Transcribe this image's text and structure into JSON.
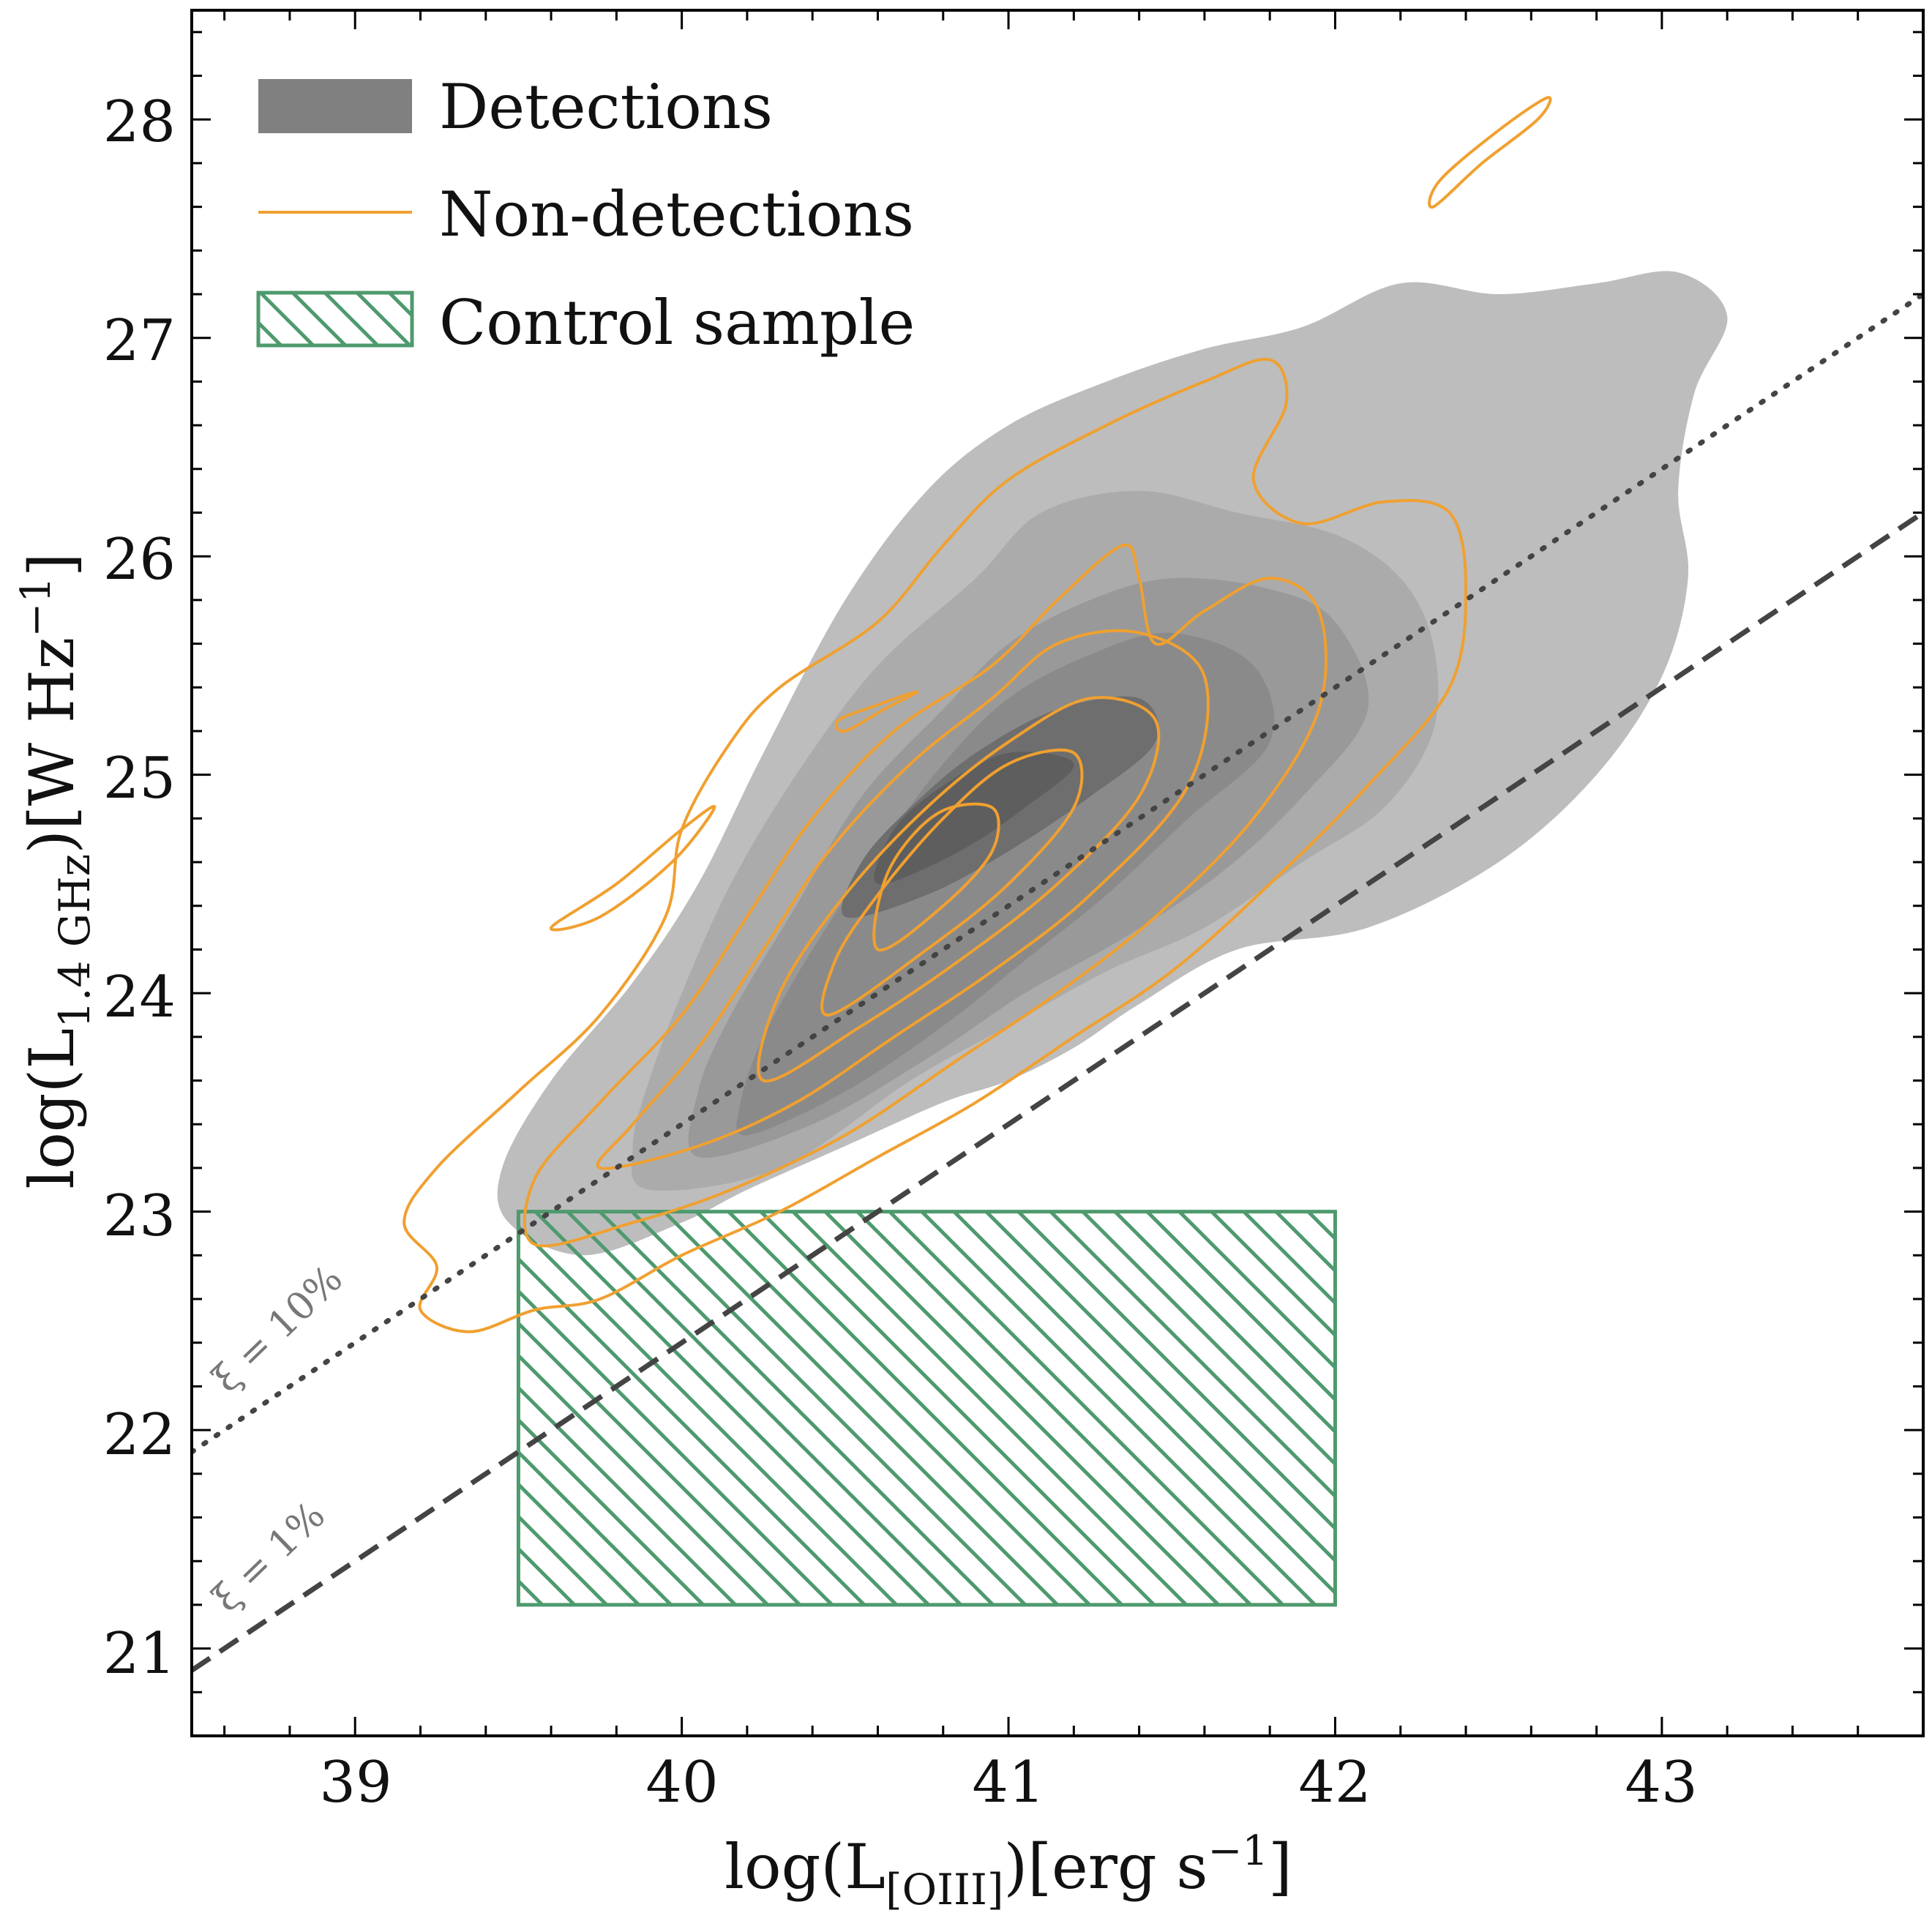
{
  "chart_data": {
    "type": "contour",
    "title": "",
    "xlabel": {
      "main": "log(L",
      "sub": "[OIII]",
      "tail": ")[erg s",
      "sup": "−1",
      "end": "]"
    },
    "ylabel": {
      "main": "log(L",
      "sub": "1.4 GHz",
      "tail": ")[W Hz",
      "sup": "−1",
      "end": "]"
    },
    "xlim": [
      38.5,
      43.8
    ],
    "ylim": [
      20.6,
      28.5
    ],
    "x_ticks": [
      39,
      40,
      41,
      42,
      43
    ],
    "y_ticks": [
      21,
      22,
      23,
      24,
      25,
      26,
      27,
      28
    ],
    "x_tick_labels": [
      "39",
      "40",
      "41",
      "42",
      "43"
    ],
    "y_tick_labels": [
      "21",
      "22",
      "23",
      "24",
      "25",
      "26",
      "27",
      "28"
    ],
    "legend": {
      "position": "top-left",
      "entries": [
        {
          "label": "Detections",
          "style": "filled",
          "color": "#808080"
        },
        {
          "label": "Non-detections",
          "style": "line",
          "color": "#f0a030"
        },
        {
          "label": "Control sample",
          "style": "hatched",
          "color": "#4e9a6e"
        }
      ]
    },
    "detections": {
      "name": "Detections",
      "levels": [
        {
          "color": "#bdbdbd",
          "points": [
            [
              39.47,
              22.95
            ],
            [
              39.7,
              22.8
            ],
            [
              40.0,
              22.95
            ],
            [
              40.2,
              23.1
            ],
            [
              40.5,
              23.3
            ],
            [
              40.8,
              23.5
            ],
            [
              41.0,
              23.6
            ],
            [
              41.2,
              23.75
            ],
            [
              41.4,
              23.95
            ],
            [
              41.7,
              24.2
            ],
            [
              42.1,
              24.3
            ],
            [
              42.5,
              24.6
            ],
            [
              42.8,
              25.0
            ],
            [
              43.0,
              25.45
            ],
            [
              43.08,
              25.9
            ],
            [
              43.05,
              26.3
            ],
            [
              43.1,
              26.75
            ],
            [
              43.2,
              27.1
            ],
            [
              43.05,
              27.3
            ],
            [
              42.8,
              27.25
            ],
            [
              42.5,
              27.2
            ],
            [
              42.2,
              27.25
            ],
            [
              41.9,
              27.05
            ],
            [
              41.6,
              26.95
            ],
            [
              41.3,
              26.8
            ],
            [
              41.0,
              26.6
            ],
            [
              40.75,
              26.3
            ],
            [
              40.5,
              25.8
            ],
            [
              40.25,
              25.1
            ],
            [
              40.05,
              24.5
            ],
            [
              39.85,
              24.05
            ],
            [
              39.6,
              23.6
            ],
            [
              39.45,
              23.2
            ]
          ]
        },
        {
          "color": "#ababab",
          "points": [
            [
              39.9,
              23.1
            ],
            [
              40.3,
              23.2
            ],
            [
              40.7,
              23.6
            ],
            [
              41.0,
              23.85
            ],
            [
              41.3,
              24.1
            ],
            [
              41.6,
              24.3
            ],
            [
              41.9,
              24.6
            ],
            [
              42.15,
              24.85
            ],
            [
              42.3,
              25.2
            ],
            [
              42.3,
              25.6
            ],
            [
              42.2,
              25.9
            ],
            [
              42.0,
              26.1
            ],
            [
              41.7,
              26.2
            ],
            [
              41.4,
              26.3
            ],
            [
              41.1,
              26.2
            ],
            [
              40.9,
              25.9
            ],
            [
              40.6,
              25.5
            ],
            [
              40.35,
              25.0
            ],
            [
              40.15,
              24.5
            ],
            [
              40.0,
              24.0
            ],
            [
              39.9,
              23.6
            ],
            [
              39.85,
              23.3
            ]
          ]
        },
        {
          "color": "#999999",
          "points": [
            [
              40.05,
              23.25
            ],
            [
              40.4,
              23.4
            ],
            [
              40.75,
              23.7
            ],
            [
              41.05,
              24.0
            ],
            [
              41.35,
              24.25
            ],
            [
              41.65,
              24.55
            ],
            [
              41.9,
              24.9
            ],
            [
              42.1,
              25.3
            ],
            [
              42.0,
              25.7
            ],
            [
              41.8,
              25.85
            ],
            [
              41.5,
              25.9
            ],
            [
              41.25,
              25.8
            ],
            [
              41.0,
              25.6
            ],
            [
              40.8,
              25.3
            ],
            [
              40.55,
              24.9
            ],
            [
              40.35,
              24.4
            ],
            [
              40.15,
              23.9
            ],
            [
              40.05,
              23.55
            ]
          ]
        },
        {
          "color": "#8a8a8a",
          "points": [
            [
              40.2,
              23.35
            ],
            [
              40.5,
              23.55
            ],
            [
              40.8,
              23.85
            ],
            [
              41.05,
              24.15
            ],
            [
              41.3,
              24.45
            ],
            [
              41.55,
              24.8
            ],
            [
              41.8,
              25.15
            ],
            [
              41.75,
              25.5
            ],
            [
              41.5,
              25.65
            ],
            [
              41.25,
              25.55
            ],
            [
              41.0,
              25.35
            ],
            [
              40.8,
              25.05
            ],
            [
              40.6,
              24.65
            ],
            [
              40.4,
              24.2
            ],
            [
              40.25,
              23.8
            ],
            [
              40.18,
              23.5
            ]
          ]
        },
        {
          "color": "#6e6e6e",
          "points": [
            [
              40.5,
              24.35
            ],
            [
              40.75,
              24.45
            ],
            [
              41.0,
              24.65
            ],
            [
              41.25,
              24.9
            ],
            [
              41.45,
              25.15
            ],
            [
              41.4,
              25.35
            ],
            [
              41.15,
              25.3
            ],
            [
              40.9,
              25.1
            ],
            [
              40.7,
              24.85
            ],
            [
              40.55,
              24.6
            ]
          ]
        },
        {
          "color": "#5e5e5e",
          "points": [
            [
              40.6,
              24.5
            ],
            [
              40.85,
              24.65
            ],
            [
              41.05,
              24.85
            ],
            [
              41.2,
              25.05
            ],
            [
              41.0,
              25.1
            ],
            [
              40.8,
              24.95
            ],
            [
              40.65,
              24.75
            ]
          ]
        }
      ]
    },
    "non_detections": {
      "name": "Non-detections",
      "color": "#f0a030",
      "contours": [
        {
          "points": [
            [
              39.2,
              22.55
            ],
            [
              39.35,
              22.45
            ],
            [
              39.55,
              22.55
            ],
            [
              39.75,
              22.6
            ],
            [
              40.0,
              22.8
            ],
            [
              40.3,
              23.0
            ],
            [
              40.6,
              23.25
            ],
            [
              40.9,
              23.5
            ],
            [
              41.2,
              23.8
            ],
            [
              41.5,
              24.1
            ],
            [
              41.8,
              24.5
            ],
            [
              42.1,
              24.95
            ],
            [
              42.35,
              25.4
            ],
            [
              42.4,
              25.85
            ],
            [
              42.35,
              26.2
            ],
            [
              42.15,
              26.25
            ],
            [
              41.9,
              26.15
            ],
            [
              41.75,
              26.35
            ],
            [
              41.85,
              26.7
            ],
            [
              41.8,
              26.9
            ],
            [
              41.6,
              26.8
            ],
            [
              41.3,
              26.6
            ],
            [
              41.0,
              26.35
            ],
            [
              40.8,
              26.05
            ],
            [
              40.6,
              25.7
            ],
            [
              40.3,
              25.4
            ],
            [
              40.15,
              25.15
            ],
            [
              40.0,
              24.75
            ],
            [
              39.95,
              24.35
            ],
            [
              39.75,
              23.9
            ],
            [
              39.5,
              23.55
            ],
            [
              39.25,
              23.2
            ],
            [
              39.15,
              22.95
            ],
            [
              39.25,
              22.75
            ]
          ]
        },
        {
          "points": [
            [
              39.55,
              22.85
            ],
            [
              39.85,
              22.95
            ],
            [
              40.15,
              23.1
            ],
            [
              40.5,
              23.35
            ],
            [
              40.85,
              23.7
            ],
            [
              41.15,
              24.0
            ],
            [
              41.45,
              24.35
            ],
            [
              41.75,
              24.8
            ],
            [
              41.95,
              25.3
            ],
            [
              41.95,
              25.75
            ],
            [
              41.8,
              25.9
            ],
            [
              41.6,
              25.75
            ],
            [
              41.45,
              25.6
            ],
            [
              41.4,
              25.9
            ],
            [
              41.35,
              26.05
            ],
            [
              41.15,
              25.8
            ],
            [
              40.95,
              25.5
            ],
            [
              40.65,
              25.2
            ],
            [
              40.4,
              24.8
            ],
            [
              40.2,
              24.35
            ],
            [
              40.0,
              23.9
            ],
            [
              39.75,
              23.5
            ],
            [
              39.55,
              23.15
            ]
          ]
        },
        {
          "points": [
            [
              39.75,
              23.2
            ],
            [
              40.05,
              23.3
            ],
            [
              40.35,
              23.5
            ],
            [
              40.65,
              23.8
            ],
            [
              40.95,
              24.1
            ],
            [
              41.25,
              24.45
            ],
            [
              41.55,
              24.95
            ],
            [
              41.6,
              25.45
            ],
            [
              41.4,
              25.65
            ],
            [
              41.15,
              25.6
            ],
            [
              40.95,
              25.35
            ],
            [
              40.7,
              25.05
            ],
            [
              40.45,
              24.65
            ],
            [
              40.25,
              24.2
            ],
            [
              40.05,
              23.75
            ],
            [
              39.85,
              23.4
            ]
          ]
        },
        {
          "points": [
            [
              40.25,
              23.6
            ],
            [
              40.55,
              23.85
            ],
            [
              40.85,
              24.15
            ],
            [
              41.15,
              24.5
            ],
            [
              41.4,
              24.9
            ],
            [
              41.45,
              25.25
            ],
            [
              41.25,
              25.35
            ],
            [
              41.0,
              25.15
            ],
            [
              40.75,
              24.85
            ],
            [
              40.5,
              24.45
            ],
            [
              40.3,
              24.0
            ]
          ]
        },
        {
          "points": [
            [
              40.45,
              23.9
            ],
            [
              40.75,
              24.2
            ],
            [
              41.0,
              24.5
            ],
            [
              41.2,
              24.85
            ],
            [
              41.2,
              25.1
            ],
            [
              41.0,
              25.05
            ],
            [
              40.8,
              24.8
            ],
            [
              40.6,
              24.45
            ],
            [
              40.47,
              24.15
            ]
          ]
        },
        {
          "points": [
            [
              40.6,
              24.2
            ],
            [
              40.8,
              24.4
            ],
            [
              40.95,
              24.65
            ],
            [
              40.95,
              24.85
            ],
            [
              40.78,
              24.82
            ],
            [
              40.63,
              24.55
            ]
          ]
        },
        {
          "points": [
            [
              40.5,
              25.2
            ],
            [
              40.62,
              25.3
            ],
            [
              40.72,
              25.38
            ],
            [
              40.6,
              25.32
            ],
            [
              40.48,
              25.25
            ]
          ]
        },
        {
          "points": [
            [
              39.6,
              24.3
            ],
            [
              39.8,
              24.5
            ],
            [
              40.0,
              24.75
            ],
            [
              40.1,
              24.85
            ],
            [
              39.97,
              24.6
            ],
            [
              39.75,
              24.35
            ]
          ]
        },
        {
          "points": [
            [
              42.3,
              27.6
            ],
            [
              42.45,
              27.8
            ],
            [
              42.62,
              28.0
            ],
            [
              42.65,
              28.1
            ],
            [
              42.5,
              27.95
            ],
            [
              42.32,
              27.72
            ]
          ]
        }
      ]
    },
    "control_sample": {
      "name": "Control sample",
      "x_range": [
        39.5,
        42.0
      ],
      "y_range": [
        21.2,
        23.0
      ],
      "color": "#4e9a6e"
    },
    "reference_lines": [
      {
        "label": "ξ = 10%",
        "style": "dotted",
        "color": "#444444",
        "x": [
          38.5,
          43.8
        ],
        "y": [
          21.9,
          27.2
        ]
      },
      {
        "label": "ξ = 1%",
        "style": "dashed",
        "color": "#444444",
        "x": [
          38.5,
          43.8
        ],
        "y": [
          20.9,
          26.2
        ]
      }
    ],
    "annotations": {
      "xi_10": "ξ = 10%",
      "xi_1": "ξ = 1%"
    }
  }
}
